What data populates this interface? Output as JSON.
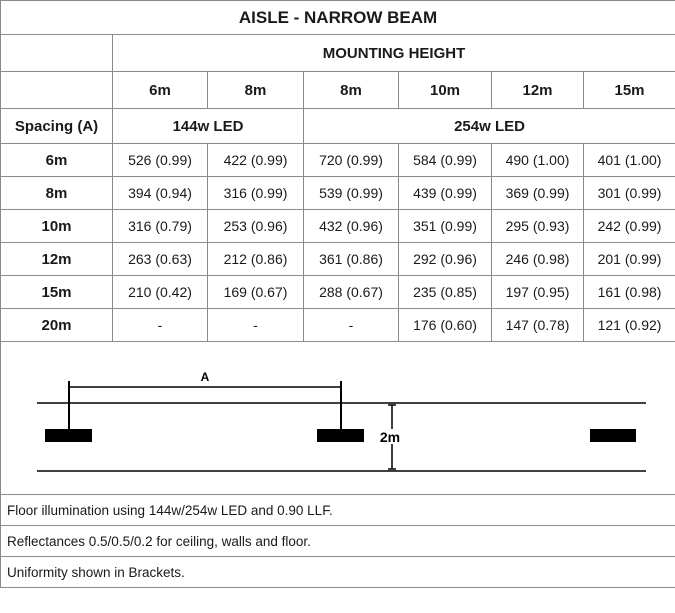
{
  "title": "AISLE - NARROW BEAM",
  "mounting_height_label": "MOUNTING HEIGHT",
  "heights": [
    "6m",
    "8m",
    "8m",
    "10m",
    "12m",
    "15m"
  ],
  "spacing_label": "Spacing (A)",
  "lamp_groups": [
    "144w LED",
    "254w LED"
  ],
  "rows": [
    {
      "spacing": "6m",
      "values": [
        "526 (0.99)",
        "422 (0.99)",
        "720 (0.99)",
        "584 (0.99)",
        "490 (1.00)",
        "401 (1.00)"
      ]
    },
    {
      "spacing": "8m",
      "values": [
        "394 (0.94)",
        "316 (0.99)",
        "539 (0.99)",
        "439 (0.99)",
        "369 (0.99)",
        "301 (0.99)"
      ]
    },
    {
      "spacing": "10m",
      "values": [
        "316 (0.79)",
        "253 (0.96)",
        "432 (0.96)",
        "351 (0.99)",
        "295 (0.93)",
        "242 (0.99)"
      ]
    },
    {
      "spacing": "12m",
      "values": [
        "263 (0.63)",
        "212 (0.86)",
        "361 (0.86)",
        "292 (0.96)",
        "246 (0.98)",
        "201 (0.99)"
      ]
    },
    {
      "spacing": "15m",
      "values": [
        "210 (0.42)",
        "169 (0.67)",
        "288 (0.67)",
        "235 (0.85)",
        "197 (0.95)",
        "161 (0.98)"
      ]
    },
    {
      "spacing": "20m",
      "values": [
        "-",
        "-",
        "-",
        "176 (0.60)",
        "147 (0.78)",
        "121 (0.92)"
      ]
    }
  ],
  "diagram": {
    "spacing_marker": "A",
    "aisle_width": "2m"
  },
  "notes": [
    "Floor illumination using 144w/254w LED and 0.90 LLF.",
    "Reflectances 0.5/0.5/0.2 for ceiling, walls and floor.",
    "Uniformity shown in Brackets."
  ]
}
